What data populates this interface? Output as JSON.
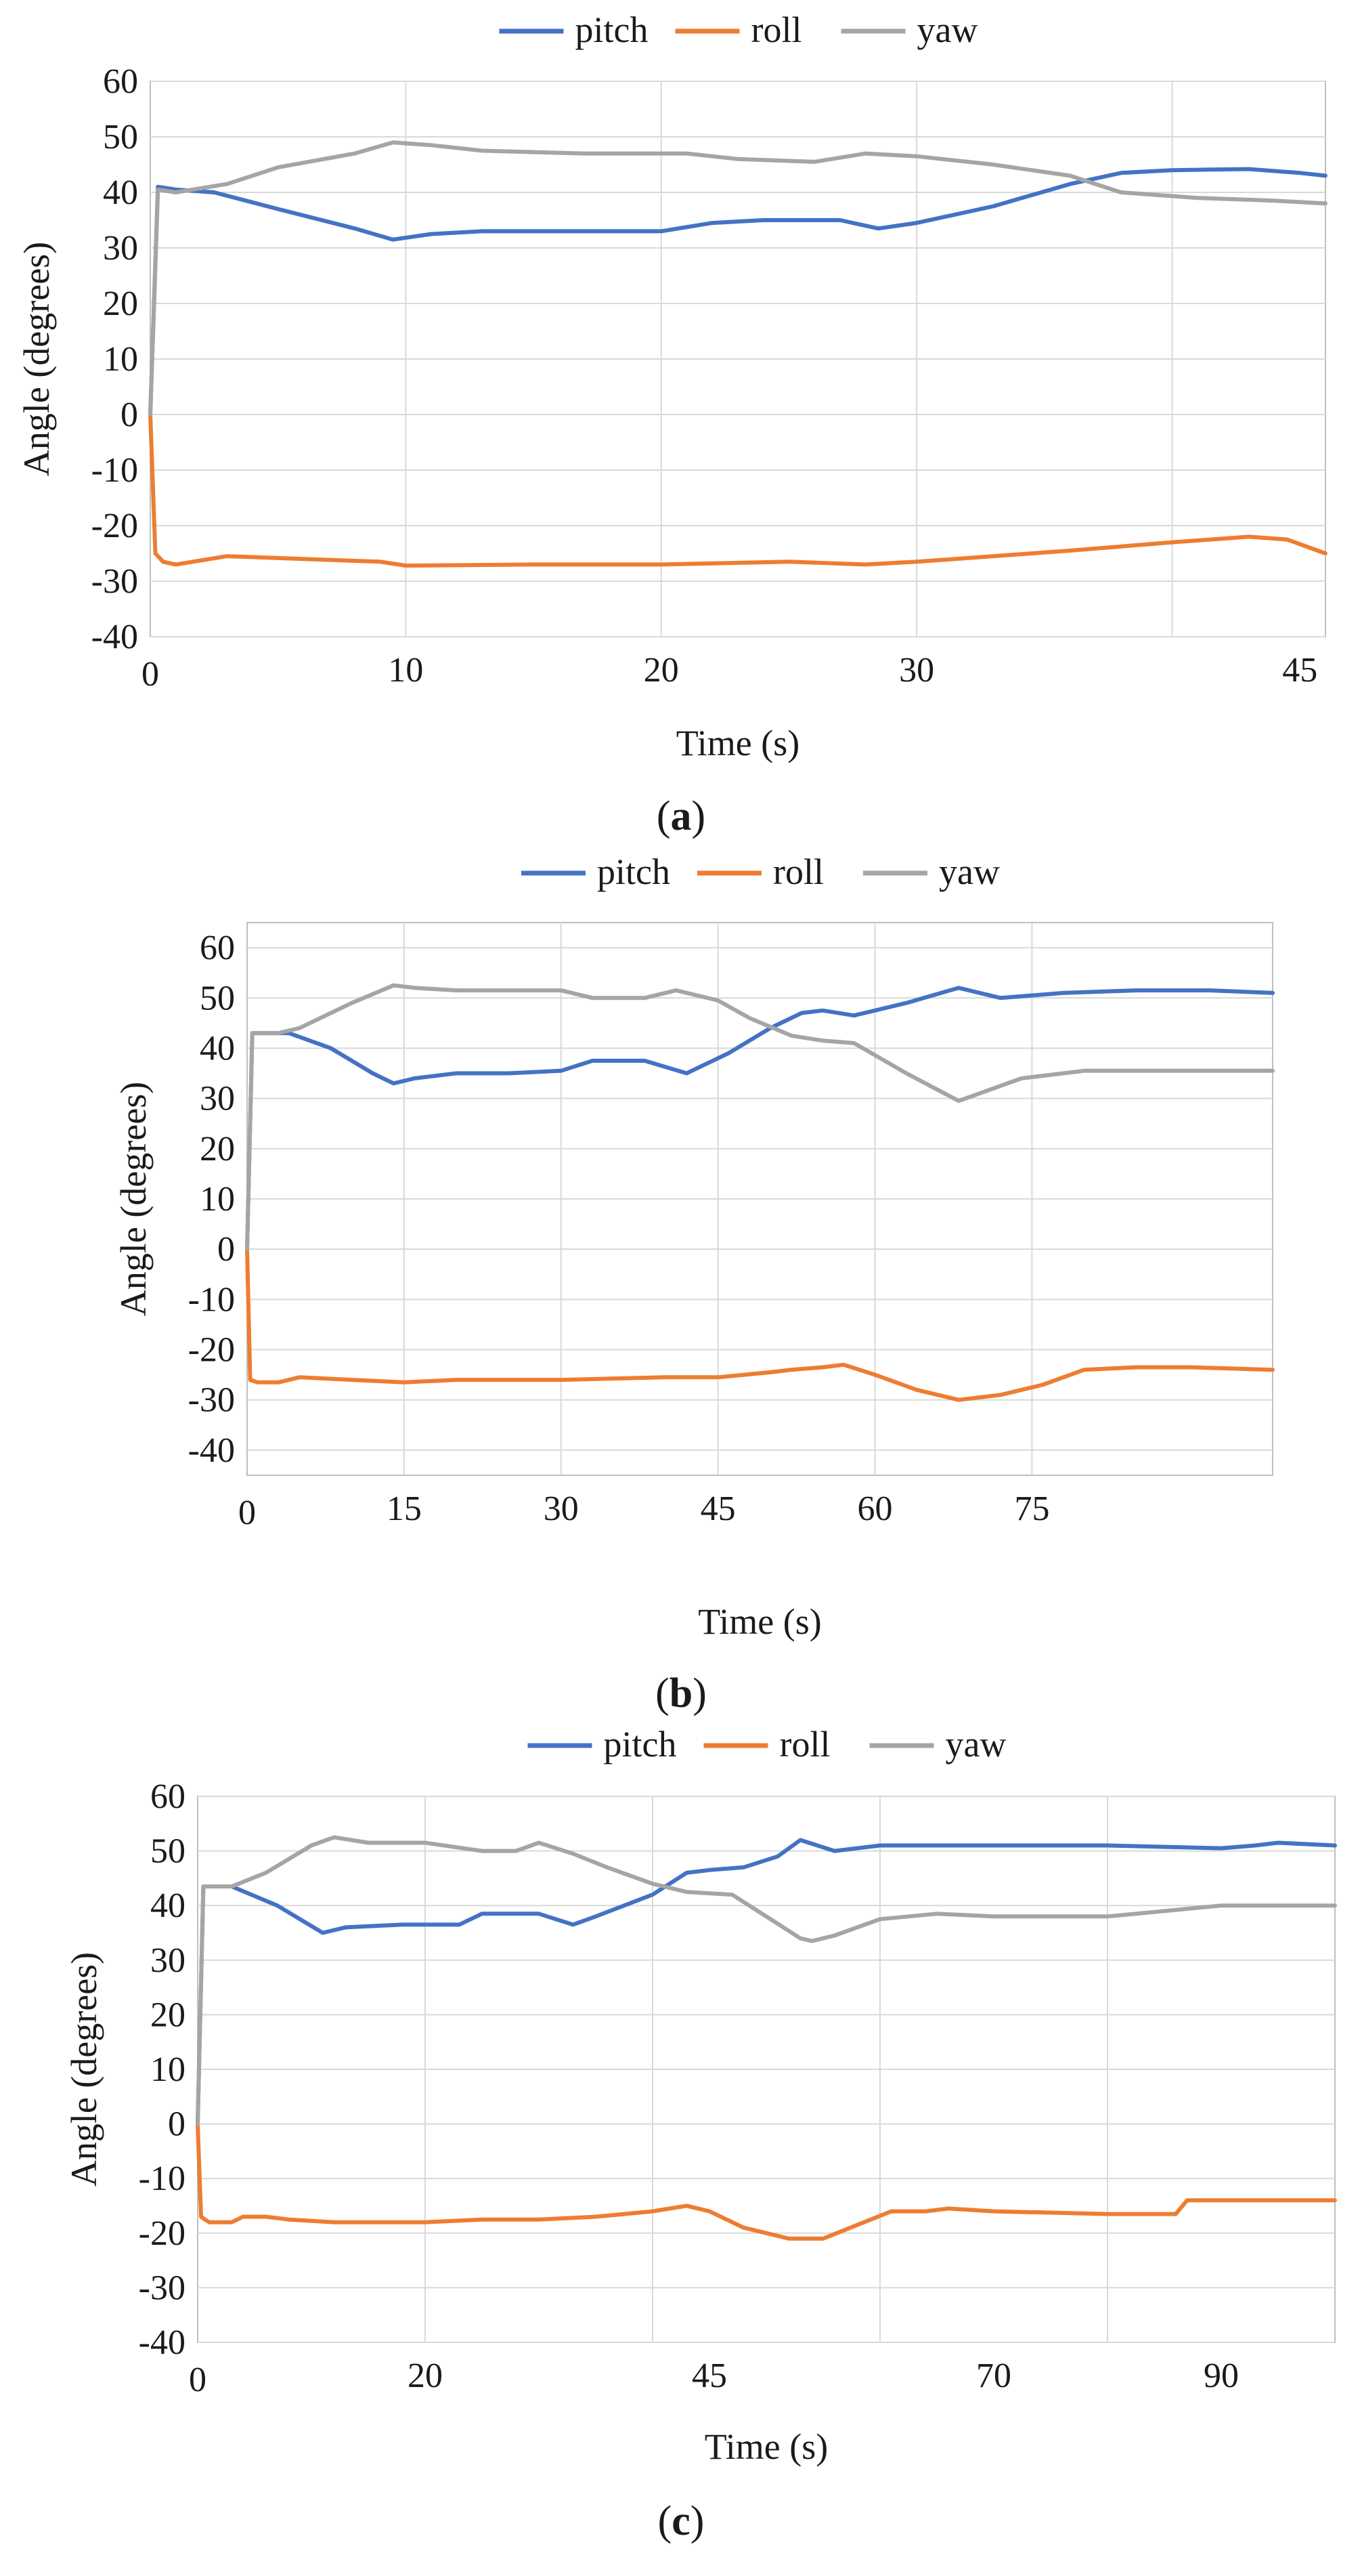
{
  "figure": {
    "colors": {
      "pitch": "#4472c4",
      "roll": "#ed7d31",
      "yaw": "#a5a5a5",
      "grid": "#d9d9d9",
      "frame": "#bfbfbf",
      "text": "#1a1a1a"
    }
  },
  "chart_data": [
    {
      "type": "line",
      "panel": "a",
      "caption_open": "(",
      "caption_letter": "a",
      "caption_close": ")",
      "legend_position": "top",
      "xlabel": "Time (s)",
      "ylabel": "Angle (degrees)",
      "grid": true,
      "xlim": [
        0,
        46
      ],
      "ylim": [
        -40,
        60
      ],
      "yticks": [
        -40,
        -30,
        -20,
        -10,
        0,
        10,
        20,
        30,
        40,
        50,
        60
      ],
      "xticks": [
        {
          "value": 0,
          "label": "0"
        },
        {
          "value": 10,
          "label": "10"
        },
        {
          "value": 20,
          "label": "20"
        },
        {
          "value": 30,
          "label": "30"
        },
        {
          "value": 45,
          "label": "45"
        }
      ],
      "gridlines_x": [
        10,
        20,
        30,
        40
      ],
      "series": [
        {
          "name": "pitch",
          "color": "#4472c4",
          "x": [
            0,
            0.3,
            1,
            2.5,
            5,
            8,
            9.5,
            11,
            13,
            17,
            20,
            22,
            24,
            27,
            28.5,
            30,
            33,
            36,
            38,
            40,
            43,
            45,
            46
          ],
          "y": [
            0,
            41,
            40.5,
            40,
            37,
            33.5,
            31.5,
            32.5,
            33,
            33,
            33,
            34.5,
            35,
            35,
            33.5,
            34.5,
            37.5,
            41.5,
            43.5,
            44,
            44.2,
            43.5,
            43
          ]
        },
        {
          "name": "roll",
          "color": "#ed7d31",
          "x": [
            0,
            0.2,
            0.5,
            1,
            3,
            6,
            9,
            10,
            15,
            20,
            25,
            28,
            30,
            33,
            36,
            40,
            43,
            44.5,
            46
          ],
          "y": [
            0,
            -25,
            -26.5,
            -27,
            -25.5,
            -26,
            -26.5,
            -27.2,
            -27,
            -27,
            -26.5,
            -27,
            -26.5,
            -25.5,
            -24.5,
            -23,
            -22,
            -22.5,
            -25
          ]
        },
        {
          "name": "yaw",
          "color": "#a5a5a5",
          "x": [
            0,
            0.3,
            1,
            3,
            5,
            8,
            9.5,
            11,
            13,
            17,
            21,
            23,
            26,
            28,
            30,
            33,
            36,
            38,
            41,
            44,
            46
          ],
          "y": [
            0,
            40.5,
            40,
            41.5,
            44.5,
            47,
            49,
            48.5,
            47.5,
            47,
            47,
            46,
            45.5,
            47,
            46.5,
            45,
            43,
            40,
            39,
            38.5,
            38
          ]
        }
      ]
    },
    {
      "type": "line",
      "panel": "b",
      "caption_open": "(",
      "caption_letter": "b",
      "caption_close": ")",
      "legend_position": "top",
      "xlabel": "Time (s)",
      "ylabel": "Angle (degrees)",
      "grid": true,
      "xlim": [
        0,
        98
      ],
      "ylim": [
        -45,
        65
      ],
      "yticks": [
        -40,
        -30,
        -20,
        -10,
        0,
        10,
        20,
        30,
        40,
        50,
        60
      ],
      "xticks": [
        {
          "value": 0,
          "label": "0"
        },
        {
          "value": 15,
          "label": "15"
        },
        {
          "value": 30,
          "label": "30"
        },
        {
          "value": 45,
          "label": "45"
        },
        {
          "value": 60,
          "label": "60"
        },
        {
          "value": 75,
          "label": "75"
        }
      ],
      "gridlines_x": [
        15,
        30,
        45,
        60,
        75
      ],
      "series": [
        {
          "name": "pitch",
          "color": "#4472c4",
          "x": [
            0,
            0.5,
            2,
            4,
            8,
            12,
            14,
            16,
            20,
            25,
            30,
            33,
            38,
            42,
            46,
            50,
            53,
            55,
            58,
            63,
            68,
            72,
            78,
            85,
            92,
            98
          ],
          "y": [
            0,
            43,
            43,
            43,
            40,
            35,
            33,
            34,
            35,
            35,
            35.5,
            37.5,
            37.5,
            35,
            39,
            44,
            47,
            47.5,
            46.5,
            49,
            52,
            50,
            51,
            51.5,
            51.5,
            51
          ]
        },
        {
          "name": "roll",
          "color": "#ed7d31",
          "x": [
            0,
            0.3,
            1,
            3,
            5,
            10,
            15,
            20,
            30,
            40,
            45,
            50,
            52,
            55,
            57,
            60,
            64,
            68,
            72,
            76,
            80,
            85,
            90,
            98
          ],
          "y": [
            0,
            -26,
            -26.5,
            -26.5,
            -25.5,
            -26,
            -26.5,
            -26,
            -26,
            -25.5,
            -25.5,
            -24.5,
            -24,
            -23.5,
            -23,
            -25,
            -28,
            -30,
            -29,
            -27,
            -24,
            -23.5,
            -23.5,
            -24
          ]
        },
        {
          "name": "yaw",
          "color": "#a5a5a5",
          "x": [
            0,
            0.5,
            3,
            5,
            10,
            14,
            16,
            20,
            25,
            30,
            33,
            38,
            41,
            45,
            48,
            52,
            55,
            58,
            63,
            68,
            70,
            74,
            80,
            90,
            98
          ],
          "y": [
            0,
            43,
            43,
            44,
            49,
            52.5,
            52,
            51.5,
            51.5,
            51.5,
            50,
            50,
            51.5,
            49.5,
            46,
            42.5,
            41.5,
            41,
            35,
            29.5,
            31,
            34,
            35.5,
            35.5,
            35.5
          ]
        }
      ]
    },
    {
      "type": "line",
      "panel": "c",
      "caption_open": "(",
      "caption_letter": "c",
      "caption_close": ")",
      "legend_position": "top",
      "xlabel": "Time (s)",
      "ylabel": "Angle (degrees)",
      "grid": true,
      "xlim": [
        0,
        100
      ],
      "ylim": [
        -40,
        60
      ],
      "yticks": [
        -40,
        -30,
        -20,
        -10,
        0,
        10,
        20,
        30,
        40,
        50,
        60
      ],
      "xticks": [
        {
          "value": 0,
          "label": "0"
        },
        {
          "value": 20,
          "label": "20"
        },
        {
          "value": 45,
          "label": "45"
        },
        {
          "value": 70,
          "label": "70"
        },
        {
          "value": 90,
          "label": "90"
        }
      ],
      "gridlines_x": [
        20,
        40,
        60,
        80
      ],
      "series": [
        {
          "name": "pitch",
          "color": "#4472c4",
          "x": [
            0,
            0.5,
            3,
            7,
            11,
            13,
            18,
            23,
            25,
            30,
            33,
            35,
            40,
            43,
            45,
            48,
            51,
            53,
            56,
            60,
            70,
            80,
            90,
            93,
            95,
            100
          ],
          "y": [
            0,
            43.5,
            43.5,
            40,
            35,
            36,
            36.5,
            36.5,
            38.5,
            38.5,
            36.5,
            38,
            42,
            46,
            46.5,
            47,
            49,
            52,
            50,
            51,
            51,
            51,
            50.5,
            51,
            51.5,
            51
          ]
        },
        {
          "name": "roll",
          "color": "#ed7d31",
          "x": [
            0,
            0.3,
            1,
            2,
            3,
            4,
            6,
            8,
            12,
            20,
            25,
            30,
            35,
            40,
            43,
            45,
            48,
            52,
            55,
            58,
            61,
            64,
            66,
            70,
            80,
            86,
            87,
            88,
            92,
            100
          ],
          "y": [
            0,
            -17,
            -18,
            -18,
            -18,
            -17,
            -17,
            -17.5,
            -18,
            -18,
            -17.5,
            -17.5,
            -17,
            -16,
            -15,
            -16,
            -19,
            -21,
            -21,
            -18.5,
            -16,
            -16,
            -15.5,
            -16,
            -16.5,
            -16.5,
            -14,
            -14,
            -14,
            -14
          ]
        },
        {
          "name": "yaw",
          "color": "#a5a5a5",
          "x": [
            0,
            0.5,
            3,
            6,
            10,
            12,
            15,
            20,
            25,
            28,
            30,
            33,
            36,
            40,
            43,
            47,
            50,
            53,
            54,
            56,
            60,
            65,
            70,
            80,
            85,
            90,
            100
          ],
          "y": [
            0,
            43.5,
            43.5,
            46,
            51,
            52.5,
            51.5,
            51.5,
            50,
            50,
            51.5,
            49.5,
            47,
            44,
            42.5,
            42,
            38,
            34,
            33.5,
            34.5,
            37.5,
            38.5,
            38,
            38,
            39,
            40,
            40
          ]
        }
      ]
    }
  ]
}
